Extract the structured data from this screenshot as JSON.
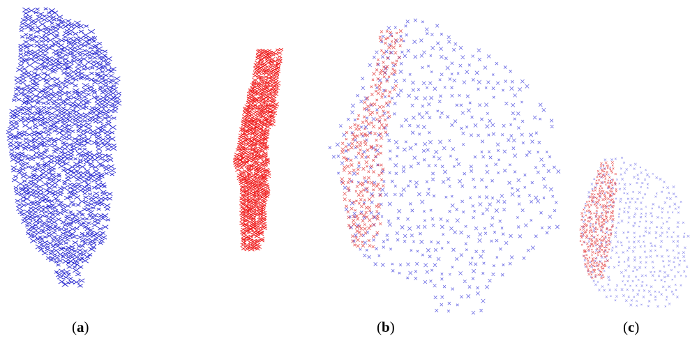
{
  "figure": {
    "panels": [
      {
        "id": "a",
        "label_open": "(",
        "label_letter": "a",
        "label_close": ")",
        "clouds": [
          {
            "name": "blue-cloud",
            "color": "#1a1acc",
            "marker": "x"
          },
          {
            "name": "red-cloud",
            "color": "#ee1111",
            "marker": "x"
          }
        ]
      },
      {
        "id": "b",
        "label_open": "(",
        "label_letter": "b",
        "label_close": ")",
        "clouds": [
          {
            "name": "registered-cloud",
            "color_primary": "#2a2ad8",
            "color_secondary": "#dd2222",
            "marker": "x"
          }
        ]
      },
      {
        "id": "c",
        "label_open": "(",
        "label_letter": "c",
        "label_close": ")",
        "clouds": [
          {
            "name": "registered-cloud-small",
            "color_primary": "#3a3ae0",
            "color_secondary": "#e02020",
            "marker": "x"
          }
        ]
      }
    ]
  }
}
